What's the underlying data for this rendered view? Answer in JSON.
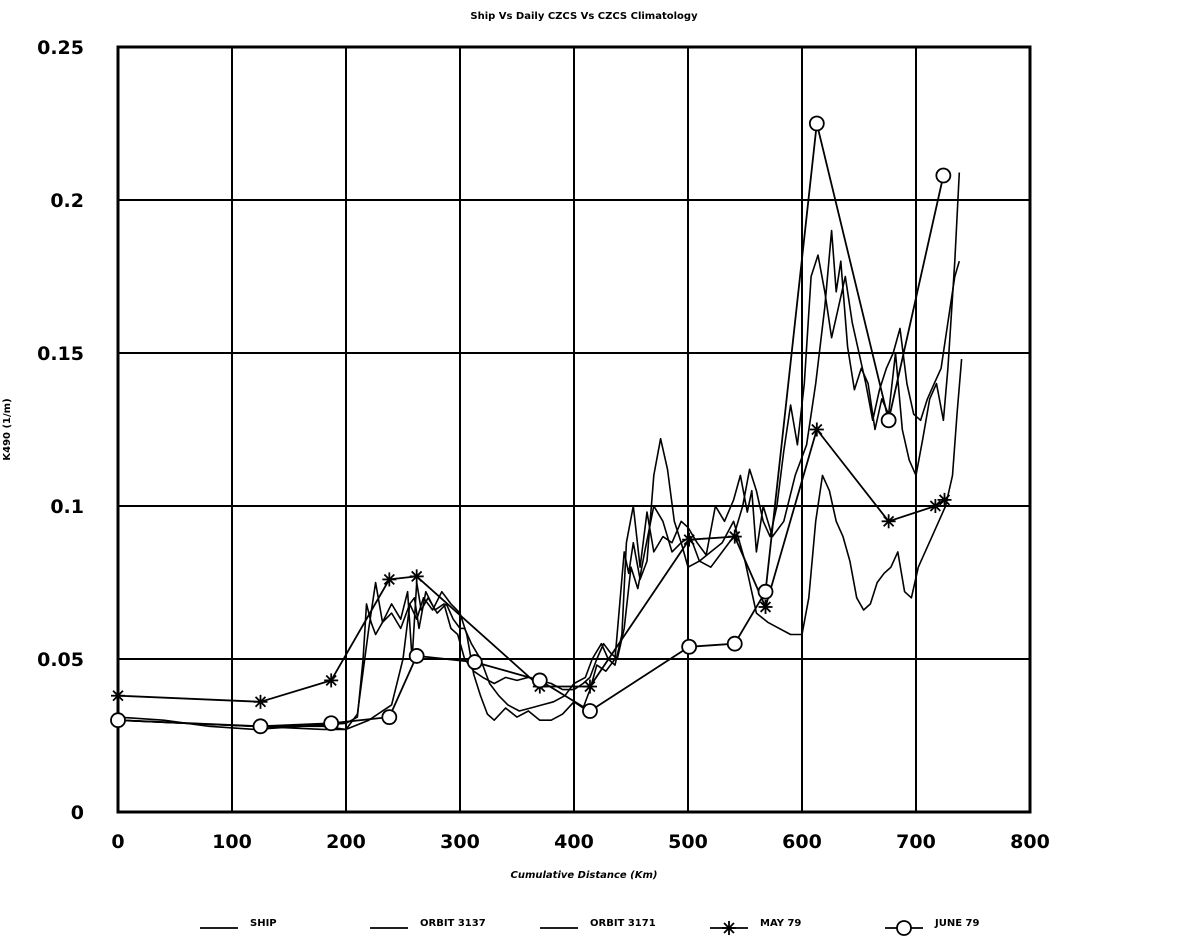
{
  "chart_data": {
    "type": "line",
    "title": "Ship Vs Daily CZCS Vs CZCS Climatology",
    "xlabel": "Cumulative Distance (Km)",
    "ylabel": "K490 (1/m)",
    "xlim": [
      0,
      800
    ],
    "ylim": [
      0,
      0.25
    ],
    "x_ticks": [
      "0",
      "100",
      "200",
      "300",
      "400",
      "500",
      "600",
      "700",
      "800"
    ],
    "y_ticks": [
      "0",
      "0.05",
      "0.1",
      "0.15",
      "0.2",
      "0.25"
    ],
    "grid": true,
    "legend_position": "bottom",
    "series": [
      {
        "name": "SHIP",
        "marker": "none",
        "x": [
          0,
          40,
          80,
          120,
          160,
          200,
          210,
          215,
          218,
          222,
          226,
          232,
          240,
          248,
          256,
          262,
          268,
          276,
          284,
          292,
          300,
          306,
          312,
          318,
          324,
          330,
          340,
          350,
          360,
          370,
          380,
          390,
          400,
          408,
          414,
          420,
          428,
          436,
          444,
          448,
          452,
          458,
          464,
          470,
          476,
          482,
          488,
          494,
          500,
          510,
          520,
          530,
          540,
          550,
          560,
          570,
          580,
          590,
          600,
          606,
          612,
          618,
          624,
          630,
          636,
          642,
          648,
          654,
          660,
          666,
          672,
          678,
          684,
          690,
          696,
          702,
          708,
          714,
          720,
          726,
          732,
          736,
          740
        ],
        "y": [
          0.031,
          0.03,
          0.028,
          0.027,
          0.028,
          0.029,
          0.031,
          0.05,
          0.068,
          0.062,
          0.058,
          0.062,
          0.065,
          0.06,
          0.068,
          0.063,
          0.07,
          0.066,
          0.072,
          0.068,
          0.065,
          0.058,
          0.045,
          0.038,
          0.032,
          0.03,
          0.034,
          0.031,
          0.033,
          0.03,
          0.03,
          0.032,
          0.036,
          0.034,
          0.04,
          0.048,
          0.046,
          0.05,
          0.085,
          0.078,
          0.088,
          0.076,
          0.082,
          0.11,
          0.122,
          0.112,
          0.095,
          0.088,
          0.08,
          0.082,
          0.085,
          0.088,
          0.095,
          0.082,
          0.065,
          0.062,
          0.06,
          0.058,
          0.058,
          0.07,
          0.095,
          0.11,
          0.105,
          0.095,
          0.09,
          0.082,
          0.07,
          0.066,
          0.068,
          0.075,
          0.078,
          0.08,
          0.085,
          0.072,
          0.07,
          0.08,
          0.085,
          0.09,
          0.095,
          0.1,
          0.11,
          0.13,
          0.148
        ]
      },
      {
        "name": "ORBIT 3137",
        "marker": "none",
        "x": [
          0,
          60,
          120,
          180,
          200,
          210,
          220,
          226,
          232,
          240,
          248,
          254,
          258,
          262,
          266,
          272,
          280,
          288,
          294,
          300,
          304,
          310,
          318,
          326,
          334,
          342,
          352,
          362,
          372,
          382,
          392,
          400,
          410,
          416,
          424,
          430,
          436,
          442,
          446,
          452,
          458,
          464,
          470,
          478,
          486,
          494,
          500,
          508,
          516,
          524,
          532,
          540,
          546,
          552,
          556,
          560,
          566,
          574,
          584,
          594,
          604,
          612,
          620,
          626,
          630,
          634,
          640,
          646,
          652,
          658,
          664,
          670,
          676,
          682,
          688,
          694,
          700,
          706,
          712,
          718,
          724,
          728,
          734,
          738
        ],
        "y": [
          0.03,
          0.029,
          0.028,
          0.027,
          0.027,
          0.032,
          0.06,
          0.075,
          0.062,
          0.068,
          0.063,
          0.072,
          0.05,
          0.075,
          0.066,
          0.07,
          0.065,
          0.068,
          0.063,
          0.06,
          0.06,
          0.055,
          0.05,
          0.042,
          0.038,
          0.035,
          0.033,
          0.034,
          0.035,
          0.036,
          0.038,
          0.042,
          0.044,
          0.05,
          0.055,
          0.05,
          0.048,
          0.058,
          0.088,
          0.1,
          0.08,
          0.098,
          0.085,
          0.09,
          0.088,
          0.095,
          0.093,
          0.088,
          0.084,
          0.1,
          0.095,
          0.102,
          0.11,
          0.098,
          0.105,
          0.085,
          0.1,
          0.09,
          0.095,
          0.11,
          0.12,
          0.14,
          0.165,
          0.19,
          0.17,
          0.18,
          0.152,
          0.138,
          0.145,
          0.14,
          0.125,
          0.135,
          0.13,
          0.15,
          0.125,
          0.115,
          0.11,
          0.122,
          0.135,
          0.14,
          0.128,
          0.145,
          0.18,
          0.209
        ]
      },
      {
        "name": "ORBIT 3171",
        "marker": "none",
        "x": [
          0,
          60,
          120,
          180,
          200,
          220,
          240,
          250,
          256,
          260,
          264,
          270,
          278,
          286,
          292,
          298,
          304,
          312,
          320,
          330,
          340,
          350,
          360,
          370,
          380,
          390,
          400,
          408,
          414,
          420,
          426,
          432,
          438,
          444,
          450,
          456,
          462,
          470,
          478,
          486,
          494,
          502,
          510,
          520,
          530,
          540,
          548,
          554,
          560,
          566,
          572,
          578,
          584,
          590,
          596,
          602,
          608,
          614,
          620,
          626,
          632,
          638,
          644,
          650,
          656,
          662,
          668,
          674,
          680,
          686,
          692,
          698,
          704,
          710,
          716,
          722,
          728,
          734,
          738
        ],
        "y": [
          0.03,
          0.029,
          0.028,
          0.028,
          0.027,
          0.03,
          0.035,
          0.05,
          0.068,
          0.07,
          0.06,
          0.072,
          0.066,
          0.068,
          0.06,
          0.058,
          0.05,
          0.046,
          0.044,
          0.042,
          0.044,
          0.043,
          0.044,
          0.043,
          0.042,
          0.04,
          0.04,
          0.042,
          0.044,
          0.05,
          0.055,
          0.052,
          0.05,
          0.06,
          0.08,
          0.073,
          0.085,
          0.1,
          0.095,
          0.085,
          0.088,
          0.09,
          0.082,
          0.08,
          0.085,
          0.09,
          0.1,
          0.112,
          0.105,
          0.095,
          0.09,
          0.1,
          0.118,
          0.133,
          0.12,
          0.14,
          0.175,
          0.182,
          0.17,
          0.155,
          0.165,
          0.175,
          0.16,
          0.15,
          0.14,
          0.128,
          0.138,
          0.145,
          0.15,
          0.158,
          0.14,
          0.13,
          0.128,
          0.135,
          0.14,
          0.145,
          0.16,
          0.175,
          0.18
        ]
      },
      {
        "name": "MAY 79",
        "marker": "asterisk",
        "x": [
          0,
          125,
          187,
          238,
          262,
          370,
          414,
          501,
          541,
          568,
          613,
          676,
          717,
          725
        ],
        "y": [
          0.038,
          0.036,
          0.043,
          0.076,
          0.077,
          0.041,
          0.041,
          0.089,
          0.09,
          0.067,
          0.125,
          0.095,
          0.1,
          0.102
        ]
      },
      {
        "name": "JUNE 79",
        "marker": "circle",
        "x": [
          0,
          125,
          187,
          238,
          262,
          313,
          370,
          414,
          501,
          541,
          568,
          613,
          676,
          724
        ],
        "y": [
          0.03,
          0.028,
          0.029,
          0.031,
          0.051,
          0.049,
          0.043,
          0.033,
          0.054,
          0.055,
          0.072,
          0.225,
          0.128,
          0.208
        ]
      }
    ]
  }
}
